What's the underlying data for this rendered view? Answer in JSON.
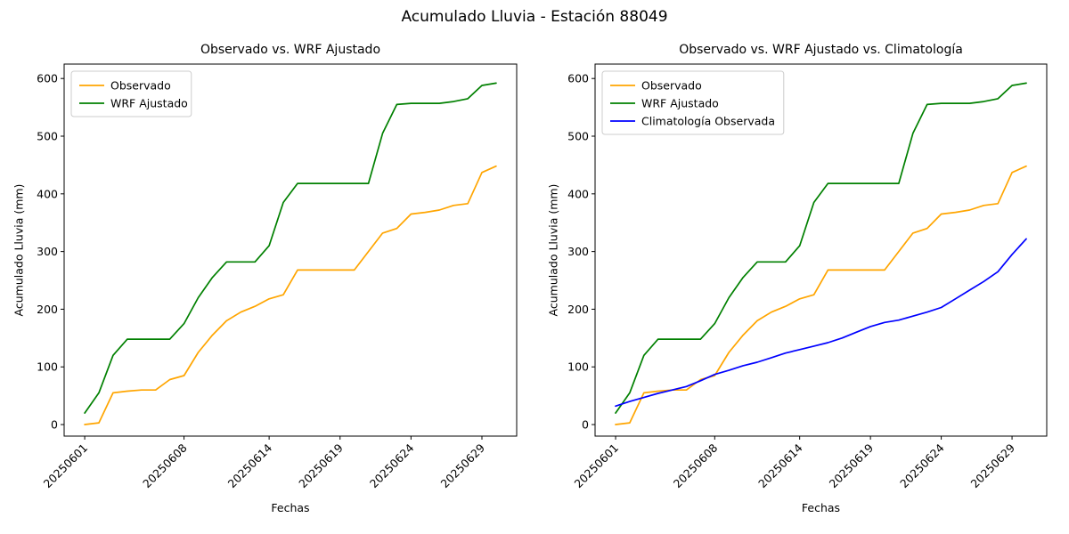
{
  "figure": {
    "title": "Acumulado Lluvia - Estación 88049",
    "background": "#ffffff"
  },
  "chart_data": [
    {
      "type": "line",
      "title": "Observado vs. WRF Ajustado",
      "xlabel": "Fechas",
      "ylabel": "Acumulado Lluvia (mm)",
      "grid": false,
      "legend_position": "upper left",
      "ylim": [
        -20,
        625
      ],
      "yticks": [
        0,
        100,
        200,
        300,
        400,
        500,
        600
      ],
      "x": [
        "20250601",
        "20250602",
        "20250603",
        "20250604",
        "20250605",
        "20250606",
        "20250607",
        "20250608",
        "20250609",
        "20250610",
        "20250611",
        "20250612",
        "20250613",
        "20250614",
        "20250615",
        "20250616",
        "20250617",
        "20250618",
        "20250619",
        "20250620",
        "20250621",
        "20250622",
        "20250623",
        "20250624",
        "20250625",
        "20250626",
        "20250627",
        "20250628",
        "20250629",
        "20250630"
      ],
      "xticks": [
        "20250601",
        "20250608",
        "20250614",
        "20250619",
        "20250624",
        "20250629"
      ],
      "series": [
        {
          "name": "Observado",
          "color": "#ffa500",
          "values": [
            0,
            3,
            55,
            58,
            60,
            60,
            78,
            85,
            125,
            155,
            180,
            195,
            205,
            218,
            225,
            268,
            268,
            268,
            268,
            268,
            300,
            332,
            340,
            365,
            368,
            372,
            380,
            383,
            437,
            448
          ]
        },
        {
          "name": "WRF Ajustado",
          "color": "#008000",
          "values": [
            20,
            55,
            120,
            148,
            148,
            148,
            148,
            175,
            220,
            255,
            282,
            282,
            282,
            310,
            385,
            418,
            418,
            418,
            418,
            418,
            418,
            505,
            555,
            557,
            557,
            557,
            560,
            565,
            588,
            592
          ]
        }
      ]
    },
    {
      "type": "line",
      "title": "Observado vs. WRF Ajustado vs. Climatología",
      "xlabel": "Fechas",
      "ylabel": "Acumulado Lluvia (mm)",
      "grid": false,
      "legend_position": "upper left",
      "ylim": [
        -20,
        625
      ],
      "yticks": [
        0,
        100,
        200,
        300,
        400,
        500,
        600
      ],
      "x": [
        "20250601",
        "20250602",
        "20250603",
        "20250604",
        "20250605",
        "20250606",
        "20250607",
        "20250608",
        "20250609",
        "20250610",
        "20250611",
        "20250612",
        "20250613",
        "20250614",
        "20250615",
        "20250616",
        "20250617",
        "20250618",
        "20250619",
        "20250620",
        "20250621",
        "20250622",
        "20250623",
        "20250624",
        "20250625",
        "20250626",
        "20250627",
        "20250628",
        "20250629",
        "20250630"
      ],
      "xticks": [
        "20250601",
        "20250608",
        "20250614",
        "20250619",
        "20250624",
        "20250629"
      ],
      "series": [
        {
          "name": "Observado",
          "color": "#ffa500",
          "values": [
            0,
            3,
            55,
            58,
            60,
            60,
            78,
            85,
            125,
            155,
            180,
            195,
            205,
            218,
            225,
            268,
            268,
            268,
            268,
            268,
            300,
            332,
            340,
            365,
            368,
            372,
            380,
            383,
            437,
            448
          ]
        },
        {
          "name": "WRF Ajustado",
          "color": "#008000",
          "values": [
            20,
            55,
            120,
            148,
            148,
            148,
            148,
            175,
            220,
            255,
            282,
            282,
            282,
            310,
            385,
            418,
            418,
            418,
            418,
            418,
            418,
            505,
            555,
            557,
            557,
            557,
            560,
            565,
            588,
            592
          ]
        },
        {
          "name": "Climatología Observada",
          "color": "#0000ff",
          "values": [
            32,
            40,
            47,
            54,
            60,
            66,
            76,
            87,
            94,
            102,
            108,
            116,
            124,
            130,
            136,
            142,
            150,
            160,
            170,
            177,
            181,
            188,
            195,
            203,
            218,
            233,
            248,
            265,
            295,
            322
          ]
        }
      ]
    }
  ]
}
